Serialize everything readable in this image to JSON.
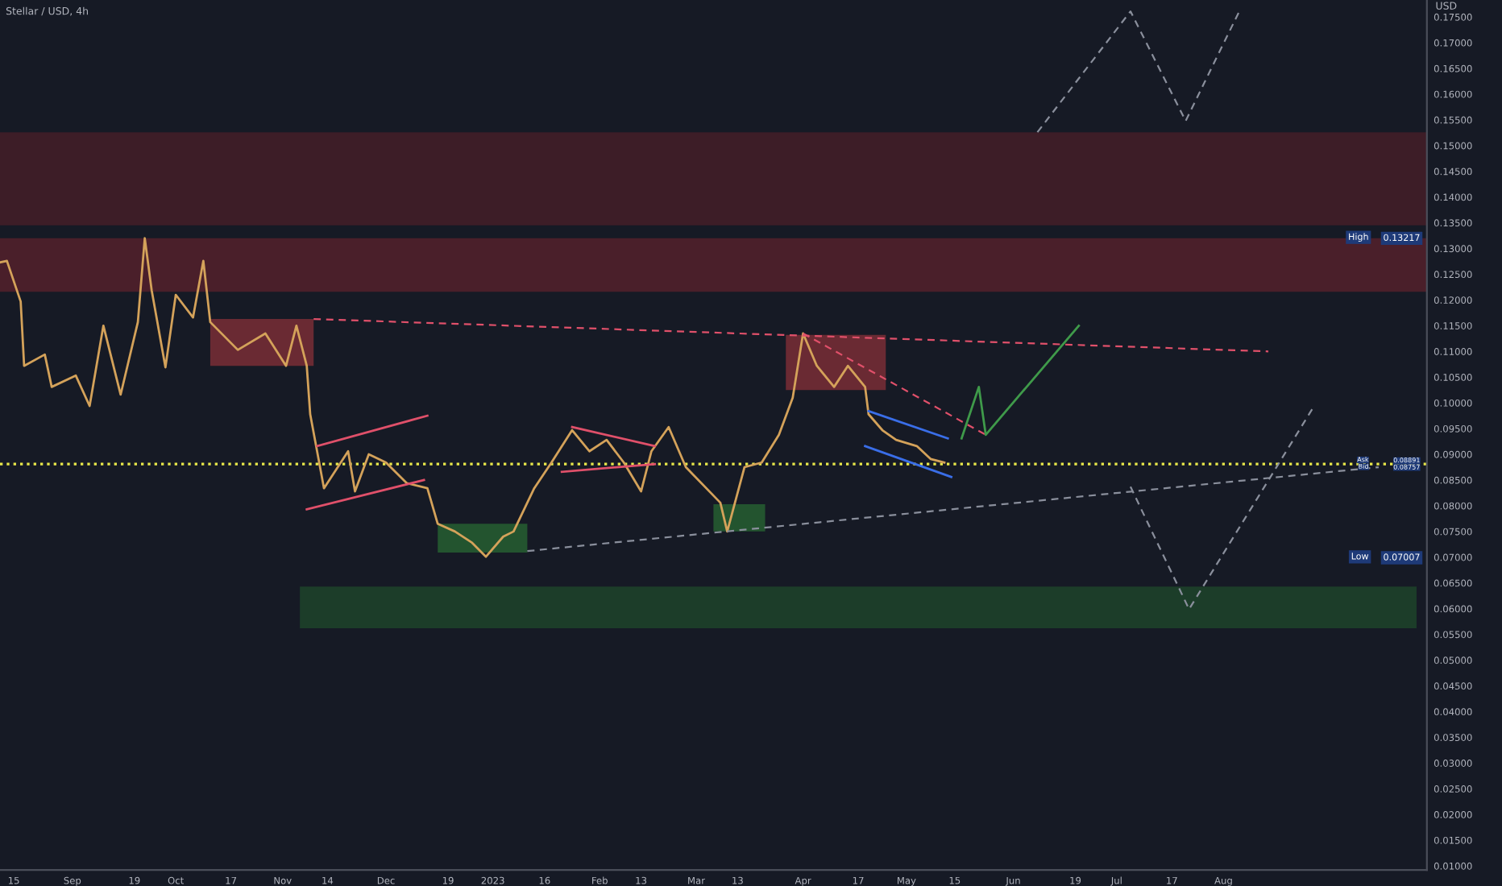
{
  "chart_data": {
    "type": "line",
    "title": "Stellar / USD, 4h",
    "ylabel": "USD",
    "xlim": [
      "2022-08-11",
      "2023-09-29"
    ],
    "ylim": [
      0.0092,
      0.1783
    ],
    "xticks": [
      {
        "value": "2022-08-15",
        "label": "15"
      },
      {
        "value": "2022-09-01",
        "label": "Sep"
      },
      {
        "value": "2022-09-19",
        "label": "19"
      },
      {
        "value": "2022-10-01",
        "label": "Oct"
      },
      {
        "value": "2022-10-17",
        "label": "17"
      },
      {
        "value": "2022-11-01",
        "label": "Nov"
      },
      {
        "value": "2022-11-14",
        "label": "14"
      },
      {
        "value": "2022-12-01",
        "label": "Dec"
      },
      {
        "value": "2022-12-19",
        "label": "19"
      },
      {
        "value": "2023-01-01",
        "label": "2023"
      },
      {
        "value": "2023-01-16",
        "label": "16"
      },
      {
        "value": "2023-02-01",
        "label": "Feb"
      },
      {
        "value": "2023-02-13",
        "label": "13"
      },
      {
        "value": "2023-03-01",
        "label": "Mar"
      },
      {
        "value": "2023-03-13",
        "label": "13"
      },
      {
        "value": "2023-04-01",
        "label": "Apr"
      },
      {
        "value": "2023-04-17",
        "label": "17"
      },
      {
        "value": "2023-05-01",
        "label": "May"
      },
      {
        "value": "2023-05-15",
        "label": "15"
      },
      {
        "value": "2023-06-01",
        "label": "Jun"
      },
      {
        "value": "2023-06-19",
        "label": "19"
      },
      {
        "value": "2023-07-01",
        "label": "Jul"
      },
      {
        "value": "2023-07-17",
        "label": "17"
      },
      {
        "value": "2023-08-01",
        "label": "Aug"
      }
    ],
    "yticks": [
      {
        "value": 0.01,
        "label": "0.01000"
      },
      {
        "value": 0.015,
        "label": "0.01500"
      },
      {
        "value": 0.02,
        "label": "0.02000"
      },
      {
        "value": 0.025,
        "label": "0.02500"
      },
      {
        "value": 0.03,
        "label": "0.03000"
      },
      {
        "value": 0.035,
        "label": "0.03500"
      },
      {
        "value": 0.04,
        "label": "0.04000"
      },
      {
        "value": 0.045,
        "label": "0.04500"
      },
      {
        "value": 0.05,
        "label": "0.05000"
      },
      {
        "value": 0.055,
        "label": "0.05500"
      },
      {
        "value": 0.06,
        "label": "0.06000"
      },
      {
        "value": 0.065,
        "label": "0.06500"
      },
      {
        "value": 0.07,
        "label": "0.07000"
      },
      {
        "value": 0.075,
        "label": "0.07500"
      },
      {
        "value": 0.08,
        "label": "0.08000"
      },
      {
        "value": 0.085,
        "label": "0.08500"
      },
      {
        "value": 0.09,
        "label": "0.09000"
      },
      {
        "value": 0.095,
        "label": "0.09500"
      },
      {
        "value": 0.1,
        "label": "0.10000"
      },
      {
        "value": 0.105,
        "label": "0.10500"
      },
      {
        "value": 0.11,
        "label": "0.11000"
      },
      {
        "value": 0.115,
        "label": "0.11500"
      },
      {
        "value": 0.12,
        "label": "0.12000"
      },
      {
        "value": 0.125,
        "label": "0.12500"
      },
      {
        "value": 0.13,
        "label": "0.13000"
      },
      {
        "value": 0.135,
        "label": "0.13500"
      },
      {
        "value": 0.14,
        "label": "0.14000"
      },
      {
        "value": 0.145,
        "label": "0.14500"
      },
      {
        "value": 0.15,
        "label": "0.15000"
      },
      {
        "value": 0.155,
        "label": "0.15500"
      },
      {
        "value": 0.16,
        "label": "0.16000"
      },
      {
        "value": 0.165,
        "label": "0.16500"
      },
      {
        "value": 0.17,
        "label": "0.17000"
      },
      {
        "value": 0.175,
        "label": "0.17500"
      }
    ],
    "series": [
      {
        "color": "#1c3d29",
        "x": [
          "2022-11-06",
          "2023-09-26"
        ],
        "lower": [
          0.0562,
          0.0562
        ],
        "upper": [
          0.0643,
          0.0643
        ],
        "values": [
          null,
          null
        ]
      },
      {
        "color": "#6a2a33",
        "x": [
          "2022-10-11",
          "2022-11-10"
        ],
        "lower": [
          0.1072,
          0.1072
        ],
        "upper": [
          0.1163,
          0.1163
        ],
        "values": [
          null,
          null
        ]
      },
      {
        "color": "#23542f",
        "x": [
          "2022-12-16",
          "2023-01-11"
        ],
        "lower": [
          0.0709,
          0.0709
        ],
        "upper": [
          0.0765,
          0.0765
        ],
        "values": [
          null,
          null
        ]
      },
      {
        "color": "#23542f",
        "x": [
          "2023-03-06",
          "2023-03-21"
        ],
        "lower": [
          0.075,
          0.075
        ],
        "upper": [
          0.0803,
          0.0803
        ],
        "values": [
          null,
          null
        ]
      },
      {
        "color": "#6a2a33",
        "x": [
          "2023-03-27",
          "2023-04-25"
        ],
        "lower": [
          0.1025,
          0.1025
        ],
        "upper": [
          0.1132,
          0.1132
        ],
        "values": [
          null,
          null
        ]
      },
      {
        "color": "#d4a25a",
        "x": [
          "2022-08-11",
          "2022-08-13",
          "2022-08-17",
          "2022-08-18",
          "2022-08-24",
          "2022-08-26",
          "2022-09-02",
          "2022-09-06",
          "2022-09-10",
          "2022-09-15",
          "2022-09-20",
          "2022-09-22",
          "2022-09-24",
          "2022-09-28",
          "2022-10-01",
          "2022-10-06",
          "2022-10-09",
          "2022-10-11",
          "2022-10-19",
          "2022-10-27",
          "2022-11-02",
          "2022-11-05",
          "2022-11-08",
          "2022-11-09",
          "2022-11-13",
          "2022-11-20",
          "2022-11-22",
          "2022-11-26",
          "2022-12-01",
          "2022-12-07",
          "2022-12-13",
          "2022-12-16",
          "2022-12-21",
          "2022-12-26",
          "2022-12-30",
          "2023-01-04",
          "2023-01-07",
          "2023-01-13",
          "2023-01-18",
          "2023-01-24",
          "2023-01-29",
          "2023-02-03",
          "2023-02-08",
          "2023-02-13",
          "2023-02-16",
          "2023-02-21",
          "2023-02-26",
          "2023-03-08",
          "2023-03-10",
          "2023-03-15",
          "2023-03-20",
          "2023-03-25",
          "2023-03-29",
          "2023-04-01",
          "2023-04-05",
          "2023-04-10",
          "2023-04-14",
          "2023-04-19",
          "2023-04-20",
          "2023-04-24",
          "2023-04-28",
          "2023-05-04",
          "2023-05-08",
          "2023-05-12"
        ],
        "values": [
          0.1273,
          0.1276,
          0.1197,
          0.1072,
          0.1094,
          0.1031,
          0.1053,
          0.0994,
          0.115,
          0.1016,
          0.1157,
          0.132,
          0.1219,
          0.1069,
          0.121,
          0.1166,
          0.1276,
          0.1157,
          0.1103,
          0.1135,
          0.1072,
          0.115,
          0.1072,
          0.0978,
          0.0834,
          0.0906,
          0.0828,
          0.09,
          0.0884,
          0.0844,
          0.0834,
          0.0765,
          0.075,
          0.0728,
          0.0701,
          0.074,
          0.075,
          0.0834,
          0.0884,
          0.0947,
          0.0906,
          0.0928,
          0.0884,
          0.0828,
          0.0906,
          0.0953,
          0.0875,
          0.0806,
          0.075,
          0.0875,
          0.0884,
          0.0938,
          0.101,
          0.1135,
          0.1072,
          0.1031,
          0.1072,
          0.1031,
          0.0978,
          0.0947,
          0.0928,
          0.0916,
          0.0891,
          0.0884
        ]
      },
      {
        "color": "#e0506a",
        "line_style": "dashed",
        "x": [
          "2022-11-10",
          "2023-08-14"
        ],
        "values": [
          0.1163,
          0.11
        ]
      },
      {
        "color": "#e0506a",
        "line_style": "dashed",
        "x": [
          "2023-04-01",
          "2023-05-24"
        ],
        "values": [
          0.1135,
          0.0938
        ]
      },
      {
        "color": "#8a8f9c",
        "line_style": "dashed",
        "x": [
          "2023-01-11",
          "2023-09-15"
        ],
        "values": [
          0.0712,
          0.0875
        ]
      },
      {
        "color": "#e0506a",
        "x": [
          "2022-11-11",
          "2022-12-13"
        ],
        "values": [
          0.0916,
          0.0975
        ]
      },
      {
        "color": "#e0506a",
        "x": [
          "2022-11-08",
          "2022-12-12"
        ],
        "values": [
          0.0793,
          0.085
        ]
      },
      {
        "color": "#e0506a",
        "x": [
          "2023-01-24",
          "2023-02-17"
        ],
        "values": [
          0.0953,
          0.0916
        ]
      },
      {
        "color": "#e0506a",
        "x": [
          "2023-01-21",
          "2023-02-17"
        ],
        "values": [
          0.0866,
          0.0881
        ]
      },
      {
        "color": "#3a6ee8",
        "x": [
          "2023-04-20",
          "2023-05-13"
        ],
        "values": [
          0.0984,
          0.0931
        ]
      },
      {
        "color": "#3a6ee8",
        "x": [
          "2023-04-19",
          "2023-05-14"
        ],
        "values": [
          0.0916,
          0.0856
        ]
      },
      {
        "color": "#8a8f9c",
        "line_style": "dashed",
        "x": [
          "2023-06-08",
          "2023-07-05",
          "2023-07-21",
          "2023-08-06"
        ],
        "values": [
          0.1526,
          0.1761,
          0.1548,
          0.1767
        ]
      },
      {
        "color": "#8a8f9c",
        "line_style": "dashed",
        "x": [
          "2023-07-05",
          "2023-07-22",
          "2023-08-27"
        ],
        "values": [
          0.0837,
          0.0599,
          0.0991
        ]
      },
      {
        "color": "#3f9a4a",
        "x": [
          "2023-05-17",
          "2023-05-22",
          "2023-05-24",
          "2023-06-20"
        ],
        "values": [
          0.0931,
          0.1031,
          0.0938,
          0.115
        ]
      }
    ],
    "bands": [
      {
        "axis": "y",
        "from": 0.1345,
        "to": 0.1526,
        "color": "#3d1d27"
      },
      {
        "axis": "y",
        "from": 0.1216,
        "to": 0.132,
        "color": "#4a1f2a"
      }
    ],
    "ref_lines": [
      {
        "axis": "y",
        "value": 0.0881,
        "color": "#e8e84a",
        "line_style": "dotted"
      }
    ],
    "y2lim": [
      0.0092,
      0.1783
    ],
    "y2ticks": [
      0.13217,
      0.08891,
      0.08757,
      0.07007
    ],
    "annotations": [
      "High",
      "Ask",
      "Bid",
      "Low"
    ]
  }
}
